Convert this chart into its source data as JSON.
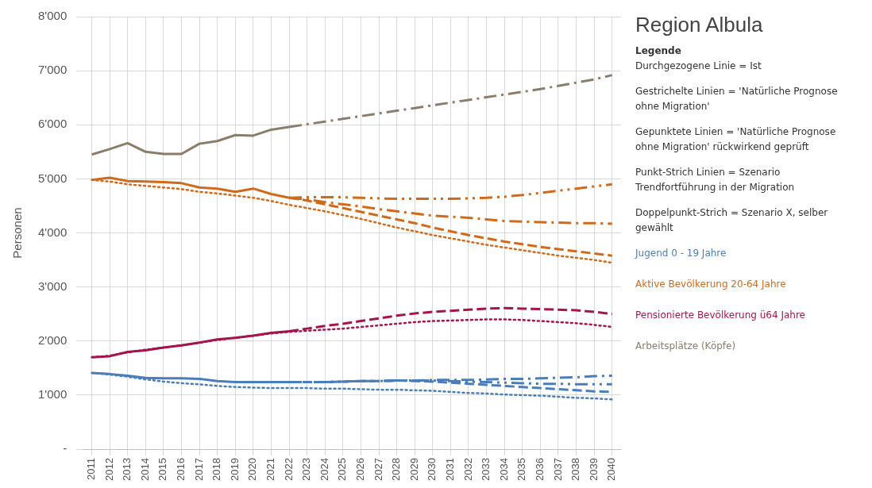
{
  "chart_data": {
    "type": "line",
    "title": "Region Albula",
    "ylabel": "Personen",
    "legend_title": "Legende",
    "legend": "right",
    "grid": true,
    "marker": "none",
    "categories": [
      "2011",
      "2012",
      "2013",
      "2014",
      "2015",
      "2016",
      "2017",
      "2018",
      "2019",
      "2020",
      "2021",
      "2022",
      "2023",
      "2024",
      "2025",
      "2026",
      "2027",
      "2028",
      "2029",
      "2030",
      "2031",
      "2032",
      "2033",
      "2034",
      "2035",
      "2036",
      "2037",
      "2038",
      "2039",
      "2040"
    ],
    "ylim": [
      0,
      8000
    ],
    "yticks": [
      {
        "value": 0,
        "label": "-"
      },
      {
        "value": 1000,
        "label": "1'000"
      },
      {
        "value": 2000,
        "label": "2'000"
      },
      {
        "value": 3000,
        "label": "3'000"
      },
      {
        "value": 4000,
        "label": "4'000"
      },
      {
        "value": 5000,
        "label": "5'000"
      },
      {
        "value": 6000,
        "label": "6'000"
      },
      {
        "value": 7000,
        "label": "7'000"
      },
      {
        "value": 8000,
        "label": "8'000"
      }
    ],
    "annotations": [
      "Durchgezogene Linie = Ist",
      "Gestrichelte Linien = 'Natürliche Prognose ohne Migration'",
      "Gepunktete Linien = 'Natürliche Prognose ohne Migration' rückwirkend geprüft",
      "Punkt-Strich Linien = Szenario Trendfortführung in der Migration",
      "Doppelpunkt-Strich = Szenario X, selber gewählt"
    ],
    "series": [
      {
        "name": "Jugend 0 - 19 Jahre",
        "color": "#4a7ebb",
        "line_style": "solid",
        "values": [
          1410,
          1390,
          1360,
          1320,
          1310,
          1310,
          1300,
          1260,
          1240,
          1240,
          1240,
          1240,
          null,
          null,
          null,
          null,
          null,
          null,
          null,
          null,
          null,
          null,
          null,
          null,
          null,
          null,
          null,
          null,
          null,
          null
        ]
      },
      {
        "color": "#4a7ebb",
        "line_style": "dashed",
        "values": [
          null,
          null,
          null,
          null,
          null,
          null,
          null,
          null,
          null,
          null,
          null,
          1240,
          1240,
          1240,
          1250,
          1260,
          1260,
          1270,
          1260,
          1250,
          1230,
          1210,
          1190,
          1170,
          1150,
          1130,
          1110,
          1090,
          1070,
          1060
        ]
      },
      {
        "color": "#4a7ebb",
        "line_style": "dotted",
        "values": [
          1410,
          1380,
          1340,
          1290,
          1250,
          1220,
          1200,
          1170,
          1150,
          1140,
          1130,
          1130,
          1130,
          1120,
          1120,
          1110,
          1100,
          1100,
          1090,
          1080,
          1060,
          1040,
          1030,
          1010,
          1000,
          990,
          970,
          950,
          940,
          920
        ]
      },
      {
        "color": "#4a7ebb",
        "line_style": "dashdot",
        "values": [
          null,
          null,
          null,
          null,
          null,
          null,
          null,
          null,
          null,
          null,
          null,
          1240,
          1240,
          1240,
          1250,
          1260,
          1260,
          1270,
          1270,
          1280,
          1280,
          1280,
          1290,
          1300,
          1300,
          1310,
          1320,
          1330,
          1350,
          1360
        ]
      },
      {
        "color": "#4a7ebb",
        "line_style": "dashdotdot",
        "values": [
          null,
          null,
          null,
          null,
          null,
          null,
          null,
          null,
          null,
          null,
          null,
          1240,
          1240,
          1240,
          1250,
          1260,
          1260,
          1270,
          1270,
          1270,
          1260,
          1250,
          1240,
          1230,
          1220,
          1210,
          1210,
          1200,
          1200,
          1200
        ]
      },
      {
        "name": "Aktive Bevölkerung 20-64 Jahre",
        "color": "#d06a1a",
        "line_style": "solid",
        "values": [
          4980,
          5020,
          4960,
          4950,
          4940,
          4920,
          4840,
          4820,
          4760,
          4820,
          4720,
          4650,
          null,
          null,
          null,
          null,
          null,
          null,
          null,
          null,
          null,
          null,
          null,
          null,
          null,
          null,
          null,
          null,
          null,
          null
        ]
      },
      {
        "color": "#d06a1a",
        "line_style": "dashed",
        "values": [
          null,
          null,
          null,
          null,
          null,
          null,
          null,
          null,
          null,
          null,
          null,
          4650,
          4600,
          4530,
          4460,
          4390,
          4320,
          4250,
          4180,
          4100,
          4030,
          3960,
          3900,
          3840,
          3790,
          3740,
          3700,
          3660,
          3620,
          3580
        ]
      },
      {
        "color": "#d06a1a",
        "line_style": "dotted",
        "values": [
          4980,
          4950,
          4900,
          4870,
          4840,
          4810,
          4760,
          4730,
          4690,
          4650,
          4590,
          4520,
          4460,
          4400,
          4330,
          4260,
          4180,
          4100,
          4030,
          3960,
          3900,
          3840,
          3780,
          3730,
          3680,
          3630,
          3580,
          3540,
          3500,
          3450
        ]
      },
      {
        "color": "#d06a1a",
        "line_style": "dashdot",
        "values": [
          null,
          null,
          null,
          null,
          null,
          null,
          null,
          null,
          null,
          null,
          null,
          4650,
          4620,
          4570,
          4530,
          4490,
          4440,
          4400,
          4360,
          4320,
          4300,
          4280,
          4250,
          4220,
          4210,
          4200,
          4190,
          4180,
          4180,
          4170
        ]
      },
      {
        "color": "#d06a1a",
        "line_style": "dashdotdot",
        "values": [
          null,
          null,
          null,
          null,
          null,
          null,
          null,
          null,
          null,
          null,
          null,
          4650,
          4660,
          4660,
          4660,
          4650,
          4640,
          4630,
          4630,
          4630,
          4630,
          4640,
          4650,
          4670,
          4700,
          4740,
          4780,
          4820,
          4860,
          4900
        ]
      },
      {
        "name": "Pensionierte Bevölkerung ü64 Jahre",
        "color": "#a3154f",
        "line_style": "solid",
        "values": [
          1700,
          1720,
          1800,
          1830,
          1880,
          1920,
          1970,
          2030,
          2060,
          2100,
          2150,
          2180,
          null,
          null,
          null,
          null,
          null,
          null,
          null,
          null,
          null,
          null,
          null,
          null,
          null,
          null,
          null,
          null,
          null,
          null
        ]
      },
      {
        "color": "#a3154f",
        "line_style": "dashed",
        "values": [
          null,
          null,
          null,
          null,
          null,
          null,
          null,
          null,
          null,
          null,
          null,
          2180,
          2230,
          2280,
          2320,
          2370,
          2420,
          2470,
          2510,
          2540,
          2560,
          2580,
          2600,
          2610,
          2600,
          2590,
          2580,
          2570,
          2540,
          2500
        ]
      },
      {
        "color": "#a3154f",
        "line_style": "dotted",
        "values": [
          1700,
          1730,
          1790,
          1840,
          1880,
          1920,
          1970,
          2020,
          2060,
          2100,
          2140,
          2170,
          2190,
          2210,
          2230,
          2260,
          2290,
          2320,
          2350,
          2370,
          2380,
          2390,
          2400,
          2400,
          2390,
          2370,
          2350,
          2330,
          2300,
          2260
        ]
      },
      {
        "name": "Arbeitsplätze (Köpfe)",
        "color": "#8b7d6b",
        "line_style": "solid",
        "values": [
          5450,
          5550,
          5660,
          5500,
          5460,
          5460,
          5650,
          5700,
          5810,
          5800,
          5910,
          5960,
          null,
          null,
          null,
          null,
          null,
          null,
          null,
          null,
          null,
          null,
          null,
          null,
          null,
          null,
          null,
          null,
          null,
          null
        ]
      },
      {
        "color": "#8b7d6b",
        "line_style": "dashdot",
        "values": [
          null,
          null,
          null,
          null,
          null,
          null,
          null,
          null,
          null,
          null,
          null,
          5960,
          6010,
          6060,
          6110,
          6160,
          6210,
          6260,
          6310,
          6360,
          6410,
          6460,
          6510,
          6560,
          6610,
          6660,
          6720,
          6780,
          6840,
          6920
        ]
      }
    ]
  }
}
